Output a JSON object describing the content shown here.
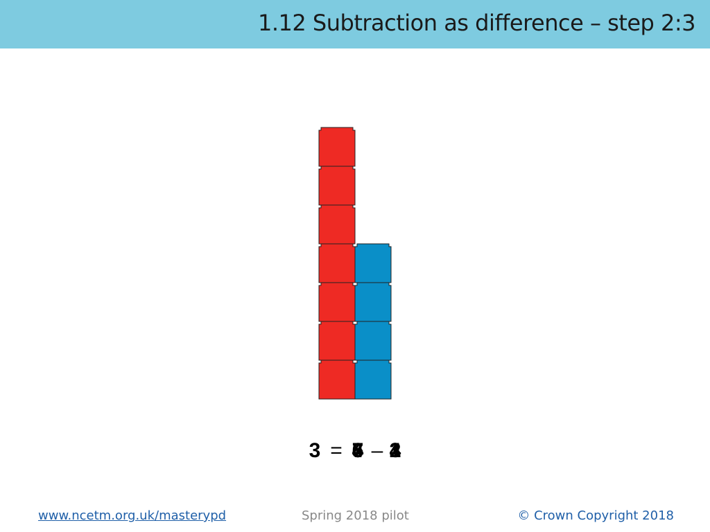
{
  "header": {
    "title": "1.12 Subtraction as difference – step 2:3"
  },
  "equation": {
    "result": "3",
    "equals": "=",
    "minuend": [
      "4",
      "5",
      "6",
      "7"
    ],
    "minus": "–",
    "subtrahend": [
      "1",
      "2",
      "3",
      "4"
    ]
  },
  "footer": {
    "link": "www.ncetm.org.uk/masterypd",
    "pilot": "Spring 2018 pilot",
    "copyright": "© Crown Copyright 2018"
  }
}
